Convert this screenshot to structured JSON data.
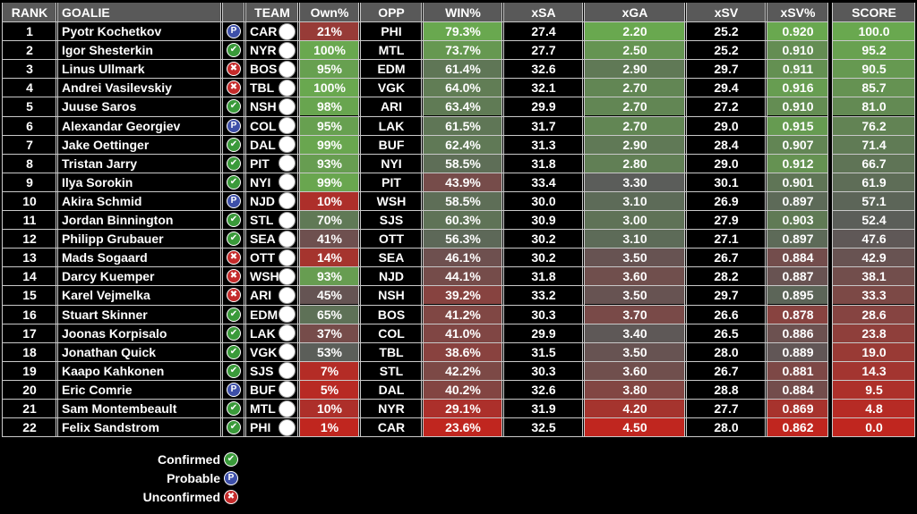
{
  "headers": {
    "rank": "RANK",
    "goalie": "GOALIE",
    "team": "TEAM",
    "own": "Own%",
    "opp": "OPP",
    "win": "WIN%",
    "xsa": "xSA",
    "xga": "xGA",
    "xsv": "xSV",
    "xsvpct": "xSV%",
    "score": "SCORE"
  },
  "rows": [
    {
      "rank": "1",
      "name": "Pyotr Kochetkov",
      "status": "probable",
      "team": "CAR",
      "own": "21%",
      "opp": "PHI",
      "win": "79.3%",
      "xsa": "27.4",
      "xga": "2.20",
      "xsv": "25.2",
      "xsvpct": "0.920",
      "score": "100.0"
    },
    {
      "rank": "2",
      "name": "Igor Shesterkin",
      "status": "confirmed",
      "team": "NYR",
      "own": "100%",
      "opp": "MTL",
      "win": "73.7%",
      "xsa": "27.7",
      "xga": "2.50",
      "xsv": "25.2",
      "xsvpct": "0.910",
      "score": "95.2"
    },
    {
      "rank": "3",
      "name": "Linus Ullmark",
      "status": "unconfirmed",
      "team": "BOS",
      "own": "95%",
      "opp": "EDM",
      "win": "61.4%",
      "xsa": "32.6",
      "xga": "2.90",
      "xsv": "29.7",
      "xsvpct": "0.911",
      "score": "90.5"
    },
    {
      "rank": "4",
      "name": "Andrei Vasilevskiy",
      "status": "unconfirmed",
      "team": "TBL",
      "own": "100%",
      "opp": "VGK",
      "win": "64.0%",
      "xsa": "32.1",
      "xga": "2.70",
      "xsv": "29.4",
      "xsvpct": "0.916",
      "score": "85.7"
    },
    {
      "rank": "5",
      "name": "Juuse Saros",
      "status": "confirmed",
      "team": "NSH",
      "own": "98%",
      "opp": "ARI",
      "win": "63.4%",
      "xsa": "29.9",
      "xga": "2.70",
      "xsv": "27.2",
      "xsvpct": "0.910",
      "score": "81.0"
    },
    {
      "rank": "6",
      "name": "Alexandar Georgiev",
      "status": "probable",
      "team": "COL",
      "own": "95%",
      "opp": "LAK",
      "win": "61.5%",
      "xsa": "31.7",
      "xga": "2.70",
      "xsv": "29.0",
      "xsvpct": "0.915",
      "score": "76.2"
    },
    {
      "rank": "7",
      "name": "Jake Oettinger",
      "status": "confirmed",
      "team": "DAL",
      "own": "99%",
      "opp": "BUF",
      "win": "62.4%",
      "xsa": "31.3",
      "xga": "2.90",
      "xsv": "28.4",
      "xsvpct": "0.907",
      "score": "71.4"
    },
    {
      "rank": "8",
      "name": "Tristan Jarry",
      "status": "confirmed",
      "team": "PIT",
      "own": "93%",
      "opp": "NYI",
      "win": "58.5%",
      "xsa": "31.8",
      "xga": "2.80",
      "xsv": "29.0",
      "xsvpct": "0.912",
      "score": "66.7"
    },
    {
      "rank": "9",
      "name": "Ilya Sorokin",
      "status": "confirmed",
      "team": "NYI",
      "own": "99%",
      "opp": "PIT",
      "win": "43.9%",
      "xsa": "33.4",
      "xga": "3.30",
      "xsv": "30.1",
      "xsvpct": "0.901",
      "score": "61.9"
    },
    {
      "rank": "10",
      "name": "Akira Schmid",
      "status": "probable",
      "team": "NJD",
      "own": "10%",
      "opp": "WSH",
      "win": "58.5%",
      "xsa": "30.0",
      "xga": "3.10",
      "xsv": "26.9",
      "xsvpct": "0.897",
      "score": "57.1"
    },
    {
      "rank": "11",
      "name": "Jordan Binnington",
      "status": "confirmed",
      "team": "STL",
      "own": "70%",
      "opp": "SJS",
      "win": "60.3%",
      "xsa": "30.9",
      "xga": "3.00",
      "xsv": "27.9",
      "xsvpct": "0.903",
      "score": "52.4"
    },
    {
      "rank": "12",
      "name": "Philipp Grubauer",
      "status": "confirmed",
      "team": "SEA",
      "own": "41%",
      "opp": "OTT",
      "win": "56.3%",
      "xsa": "30.2",
      "xga": "3.10",
      "xsv": "27.1",
      "xsvpct": "0.897",
      "score": "47.6"
    },
    {
      "rank": "13",
      "name": "Mads Sogaard",
      "status": "unconfirmed",
      "team": "OTT",
      "own": "14%",
      "opp": "SEA",
      "win": "46.1%",
      "xsa": "30.2",
      "xga": "3.50",
      "xsv": "26.7",
      "xsvpct": "0.884",
      "score": "42.9"
    },
    {
      "rank": "14",
      "name": "Darcy Kuemper",
      "status": "unconfirmed",
      "team": "WSH",
      "own": "93%",
      "opp": "NJD",
      "win": "44.1%",
      "xsa": "31.8",
      "xga": "3.60",
      "xsv": "28.2",
      "xsvpct": "0.887",
      "score": "38.1"
    },
    {
      "rank": "15",
      "name": "Karel Vejmelka",
      "status": "unconfirmed",
      "team": "ARI",
      "own": "45%",
      "opp": "NSH",
      "win": "39.2%",
      "xsa": "33.2",
      "xga": "3.50",
      "xsv": "29.7",
      "xsvpct": "0.895",
      "score": "33.3"
    },
    {
      "rank": "16",
      "name": "Stuart Skinner",
      "status": "confirmed",
      "team": "EDM",
      "own": "65%",
      "opp": "BOS",
      "win": "41.2%",
      "xsa": "30.3",
      "xga": "3.70",
      "xsv": "26.6",
      "xsvpct": "0.878",
      "score": "28.6"
    },
    {
      "rank": "17",
      "name": "Joonas Korpisalo",
      "status": "confirmed",
      "team": "LAK",
      "own": "37%",
      "opp": "COL",
      "win": "41.0%",
      "xsa": "29.9",
      "xga": "3.40",
      "xsv": "26.5",
      "xsvpct": "0.886",
      "score": "23.8"
    },
    {
      "rank": "18",
      "name": "Jonathan Quick",
      "status": "confirmed",
      "team": "VGK",
      "own": "53%",
      "opp": "TBL",
      "win": "38.6%",
      "xsa": "31.5",
      "xga": "3.50",
      "xsv": "28.0",
      "xsvpct": "0.889",
      "score": "19.0"
    },
    {
      "rank": "19",
      "name": "Kaapo Kahkonen",
      "status": "confirmed",
      "team": "SJS",
      "own": "7%",
      "opp": "STL",
      "win": "42.2%",
      "xsa": "30.3",
      "xga": "3.60",
      "xsv": "26.7",
      "xsvpct": "0.881",
      "score": "14.3"
    },
    {
      "rank": "20",
      "name": "Eric Comrie",
      "status": "probable",
      "team": "BUF",
      "own": "5%",
      "opp": "DAL",
      "win": "40.2%",
      "xsa": "32.6",
      "xga": "3.80",
      "xsv": "28.8",
      "xsvpct": "0.884",
      "score": "9.5"
    },
    {
      "rank": "21",
      "name": "Sam Montembeault",
      "status": "confirmed",
      "team": "MTL",
      "own": "10%",
      "opp": "NYR",
      "win": "29.1%",
      "xsa": "31.9",
      "xga": "4.20",
      "xsv": "27.7",
      "xsvpct": "0.869",
      "score": "4.8"
    },
    {
      "rank": "22",
      "name": "Felix Sandstrom",
      "status": "confirmed",
      "team": "PHI",
      "own": "1%",
      "opp": "CAR",
      "win": "23.6%",
      "xsa": "32.5",
      "xga": "4.50",
      "xsv": "28.0",
      "xsvpct": "0.862",
      "score": "0.0"
    }
  ],
  "legend": [
    {
      "label": "Confirmed",
      "status": "confirmed"
    },
    {
      "label": "Probable",
      "status": "probable"
    },
    {
      "label": "Unconfirmed",
      "status": "unconfirmed"
    }
  ],
  "status_glyphs": {
    "confirmed": "✔",
    "probable": "P",
    "unconfirmed": "✖"
  },
  "icons": {
    "confirmed": "check-circle-icon",
    "probable": "probable-p-icon",
    "unconfirmed": "x-circle-icon"
  },
  "colors": {
    "header_bg": "#595959",
    "heat_good": "#69a84f",
    "heat_mid": "#5a5a5a",
    "heat_bad": "#c0261f",
    "confirmed": "#3a9a3a",
    "probable": "#3d4fa8",
    "unconfirmed": "#c42b2b"
  }
}
